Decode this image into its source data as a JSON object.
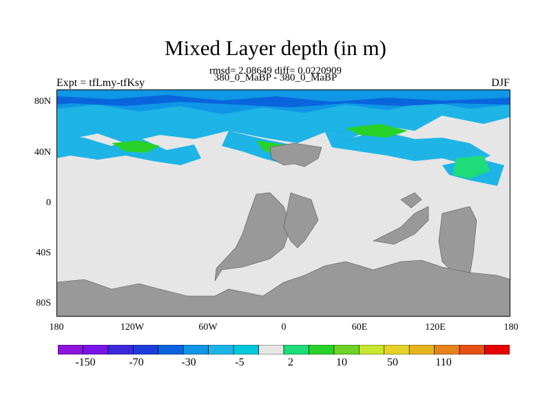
{
  "title": "Mixed Layer depth (in m)",
  "stats_line": "rmsd= 2.08649 diff= 0.0220909",
  "subtitle": "380_0_MaBP - 380_0_MaBP",
  "left_label": "Expt = tfLmy-tfKsy",
  "right_label": "DJF",
  "map": {
    "lat_ticks": [
      "80N",
      "40N",
      "0",
      "40S",
      "80S"
    ],
    "lon_ticks": [
      "180",
      "120W",
      "60W",
      "0",
      "60E",
      "120E",
      "180"
    ],
    "colors": {
      "land": "#999999",
      "neutral": "#e6e6e6",
      "light_blue": "#1eb4e6",
      "medium_blue": "#0f96e6",
      "dark_blue": "#0a64dc",
      "light_green": "#1ee678",
      "green": "#28d228",
      "yellow_green": "#a0e632"
    }
  },
  "colorbar": {
    "colors": [
      "#8c14dc",
      "#7814e6",
      "#3c28dc",
      "#1e3cdc",
      "#0a64dc",
      "#0f96e6",
      "#1eb4e6",
      "#00c8dc",
      "#e6e6e6",
      "#1edc7a",
      "#28d228",
      "#6ed228",
      "#c8e632",
      "#e6d228",
      "#e6b41e",
      "#e6821e",
      "#e65014",
      "#e60000"
    ],
    "labels": [
      "-150",
      "-70",
      "-30",
      "-5",
      "2",
      "10",
      "50",
      "110"
    ]
  }
}
